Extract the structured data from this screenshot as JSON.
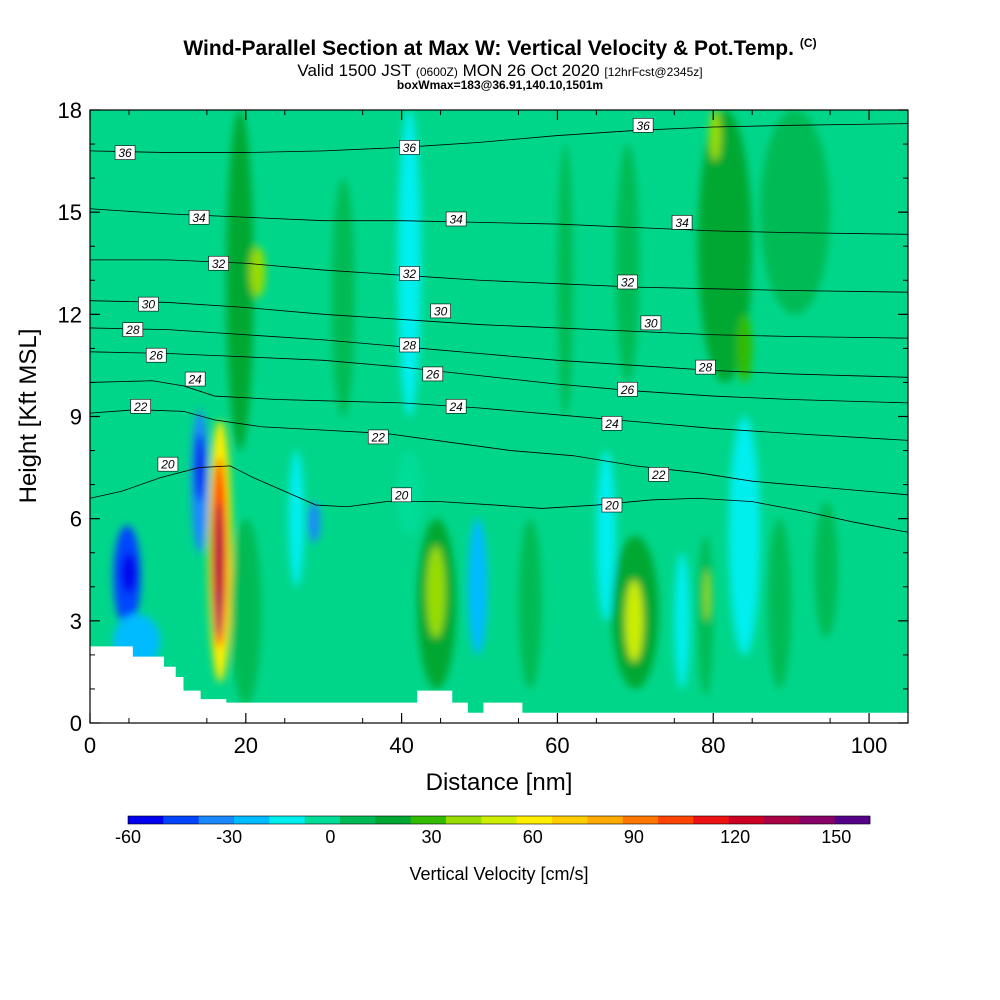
{
  "title": {
    "main": "Wind-Parallel Section at Max W: Vertical Velocity & Pot.Temp.",
    "copyright": "(C)",
    "valid_prefix": "Valid 1500 JST",
    "valid_z": "(0600Z)",
    "valid_date": "MON 26 Oct 2020",
    "fcst": "[12hrFcst@2345z]",
    "box": "boxWmax=183@36.91,140.10,1501m"
  },
  "chart_data": {
    "type": "heatmap",
    "xlabel": "Distance [nm]",
    "ylabel": "Height [Kft MSL]",
    "xlim": [
      0,
      105
    ],
    "ylim": [
      0,
      18
    ],
    "x_ticks": [
      0,
      20,
      40,
      60,
      80,
      100
    ],
    "y_ticks": [
      0,
      3,
      6,
      9,
      12,
      15,
      18
    ],
    "grid": false,
    "colorbar": {
      "label": "Vertical Velocity [cm/s]",
      "ticks": [
        -60,
        -30,
        0,
        30,
        60,
        90,
        120,
        150
      ],
      "range": [
        -60,
        160
      ],
      "colors": [
        "#0000ee",
        "#0044ff",
        "#1a88ff",
        "#00bbff",
        "#00eeee",
        "#00dd99",
        "#00bb55",
        "#00a833",
        "#33bb00",
        "#99dd00",
        "#ccee00",
        "#ffee00",
        "#ffcc00",
        "#ffaa00",
        "#ff7700",
        "#ff4400",
        "#ee1111",
        "#cc0022",
        "#aa0044",
        "#880066",
        "#550088"
      ]
    },
    "background_w_color": "#00d68a",
    "w_cells": [
      {
        "x": [
          3,
          6.5
        ],
        "y": [
          2.8,
          5.8
        ],
        "w": -45
      },
      {
        "x": [
          4,
          6
        ],
        "y": [
          3.8,
          5
        ],
        "w": -60
      },
      {
        "x": [
          3,
          9
        ],
        "y": [
          1.6,
          3.2
        ],
        "w": -20
      },
      {
        "x": [
          13,
          15.2
        ],
        "y": [
          5,
          9.2
        ],
        "w": -35
      },
      {
        "x": [
          13.5,
          14.7
        ],
        "y": [
          6.5,
          8.5
        ],
        "w": -55
      },
      {
        "x": [
          15.2,
          18.2
        ],
        "y": [
          1.2,
          8.9
        ],
        "w": 60
      },
      {
        "x": [
          15.6,
          17.6
        ],
        "y": [
          2.2,
          7.8
        ],
        "w": 100
      },
      {
        "x": [
          15.9,
          17.1
        ],
        "y": [
          3,
          6.5
        ],
        "w": 130
      },
      {
        "x": [
          16.1,
          16.8
        ],
        "y": [
          2.5,
          4
        ],
        "w": 145
      },
      {
        "x": [
          18,
          22
        ],
        "y": [
          0.5,
          6
        ],
        "w": 10
      },
      {
        "x": [
          17.5,
          21
        ],
        "y": [
          8,
          18
        ],
        "w": 15
      },
      {
        "x": [
          20.5,
          22.5
        ],
        "y": [
          12.5,
          14
        ],
        "w": 35
      },
      {
        "x": [
          25.5,
          27.5
        ],
        "y": [
          4,
          8
        ],
        "w": -15
      },
      {
        "x": [
          28,
          29.5
        ],
        "y": [
          5.3,
          6.5
        ],
        "w": -35
      },
      {
        "x": [
          31,
          34
        ],
        "y": [
          9,
          16
        ],
        "w": 10
      },
      {
        "x": [
          39.5,
          42.5
        ],
        "y": [
          9,
          18
        ],
        "w": -15
      },
      {
        "x": [
          39.5,
          42.5
        ],
        "y": [
          5.5,
          8
        ],
        "w": -5
      },
      {
        "x": [
          42,
          47
        ],
        "y": [
          1,
          6
        ],
        "w": 15
      },
      {
        "x": [
          43.2,
          45.6
        ],
        "y": [
          2.5,
          5.2
        ],
        "w": 40
      },
      {
        "x": [
          48.5,
          51
        ],
        "y": [
          2,
          6
        ],
        "w": -22
      },
      {
        "x": [
          55,
          58
        ],
        "y": [
          1,
          6
        ],
        "w": 10
      },
      {
        "x": [
          60,
          62
        ],
        "y": [
          9,
          17
        ],
        "w": 12
      },
      {
        "x": [
          65,
          67.5
        ],
        "y": [
          3,
          8
        ],
        "w": -10
      },
      {
        "x": [
          67,
          73
        ],
        "y": [
          1,
          5.5
        ],
        "w": 15
      },
      {
        "x": [
          68.7,
          71
        ],
        "y": [
          1.8,
          4.2
        ],
        "w": 45
      },
      {
        "x": [
          67.5,
          70.5
        ],
        "y": [
          10,
          17
        ],
        "w": 12
      },
      {
        "x": [
          75,
          77
        ],
        "y": [
          1,
          5
        ],
        "w": -12
      },
      {
        "x": [
          78,
          80
        ],
        "y": [
          0.8,
          5.5
        ],
        "w": 12
      },
      {
        "x": [
          78.8,
          79.6
        ],
        "y": [
          3,
          4.5
        ],
        "w": 40
      },
      {
        "x": [
          78,
          85
        ],
        "y": [
          10,
          18
        ],
        "w": 14
      },
      {
        "x": [
          79.5,
          81
        ],
        "y": [
          16.5,
          18
        ],
        "w": 35
      },
      {
        "x": [
          83,
          85
        ],
        "y": [
          10,
          12
        ],
        "w": 30
      },
      {
        "x": [
          82,
          86
        ],
        "y": [
          2,
          9
        ],
        "w": -10
      },
      {
        "x": [
          87,
          90
        ],
        "y": [
          1,
          6
        ],
        "w": 12
      },
      {
        "x": [
          86,
          95
        ],
        "y": [
          12,
          18
        ],
        "w": 10
      },
      {
        "x": [
          93,
          96
        ],
        "y": [
          2.5,
          6.5
        ],
        "w": 8
      }
    ],
    "terrain": [
      [
        0,
        2.25
      ],
      [
        5.5,
        2.25
      ],
      [
        5.5,
        1.95
      ],
      [
        9.5,
        1.95
      ],
      [
        9.5,
        1.65
      ],
      [
        11,
        1.65
      ],
      [
        11,
        1.35
      ],
      [
        12,
        1.35
      ],
      [
        12,
        0.95
      ],
      [
        14.2,
        0.95
      ],
      [
        14.2,
        0.7
      ],
      [
        17.5,
        0.7
      ],
      [
        17.5,
        0.6
      ],
      [
        42,
        0.6
      ],
      [
        42,
        0.95
      ],
      [
        46.5,
        0.95
      ],
      [
        46.5,
        0.6
      ],
      [
        48.5,
        0.6
      ],
      [
        48.5,
        0.3
      ],
      [
        50.5,
        0.3
      ],
      [
        50.5,
        0.6
      ],
      [
        55.5,
        0.6
      ],
      [
        55.5,
        0.3
      ],
      [
        105,
        0.3
      ]
    ],
    "theta_contours": [
      {
        "value": 20,
        "points": [
          [
            0,
            6.6
          ],
          [
            4,
            6.8
          ],
          [
            9,
            7.2
          ],
          [
            14,
            7.5
          ],
          [
            18,
            7.55
          ],
          [
            21,
            7.2
          ],
          [
            25,
            6.8
          ],
          [
            29,
            6.4
          ],
          [
            33,
            6.35
          ],
          [
            38,
            6.5
          ],
          [
            45,
            6.5
          ],
          [
            52,
            6.4
          ],
          [
            58,
            6.3
          ],
          [
            65,
            6.4
          ],
          [
            72,
            6.55
          ],
          [
            78,
            6.6
          ],
          [
            85,
            6.5
          ],
          [
            92,
            6.2
          ],
          [
            98,
            5.9
          ],
          [
            105,
            5.6
          ]
        ],
        "labels": [
          [
            10,
            7.6
          ],
          [
            40,
            6.7
          ],
          [
            67,
            6.4
          ]
        ]
      },
      {
        "value": 22,
        "points": [
          [
            0,
            9.1
          ],
          [
            6,
            9.2
          ],
          [
            12,
            9.15
          ],
          [
            16,
            8.9
          ],
          [
            22,
            8.7
          ],
          [
            30,
            8.6
          ],
          [
            38,
            8.5
          ],
          [
            46,
            8.25
          ],
          [
            54,
            8.0
          ],
          [
            62,
            7.85
          ],
          [
            70,
            7.55
          ],
          [
            78,
            7.35
          ],
          [
            85,
            7.1
          ],
          [
            95,
            6.9
          ],
          [
            105,
            6.7
          ]
        ],
        "labels": [
          [
            6.5,
            9.3
          ],
          [
            37,
            8.4
          ],
          [
            73,
            7.3
          ]
        ]
      },
      {
        "value": 24,
        "points": [
          [
            0,
            10.0
          ],
          [
            8,
            10.05
          ],
          [
            12,
            9.9
          ],
          [
            16,
            9.6
          ],
          [
            24,
            9.5
          ],
          [
            32,
            9.45
          ],
          [
            40,
            9.4
          ],
          [
            50,
            9.25
          ],
          [
            60,
            9.05
          ],
          [
            70,
            8.85
          ],
          [
            80,
            8.65
          ],
          [
            90,
            8.5
          ],
          [
            105,
            8.3
          ]
        ],
        "labels": [
          [
            13.5,
            10.1
          ],
          [
            47,
            9.3
          ],
          [
            67,
            8.8
          ]
        ]
      },
      {
        "value": 26,
        "points": [
          [
            0,
            10.9
          ],
          [
            10,
            10.85
          ],
          [
            20,
            10.75
          ],
          [
            30,
            10.65
          ],
          [
            40,
            10.45
          ],
          [
            50,
            10.2
          ],
          [
            60,
            9.95
          ],
          [
            70,
            9.75
          ],
          [
            80,
            9.6
          ],
          [
            90,
            9.5
          ],
          [
            105,
            9.4
          ]
        ],
        "labels": [
          [
            8.5,
            10.8
          ],
          [
            44,
            10.25
          ],
          [
            69,
            9.8
          ]
        ]
      },
      {
        "value": 28,
        "points": [
          [
            0,
            11.6
          ],
          [
            10,
            11.55
          ],
          [
            20,
            11.4
          ],
          [
            30,
            11.25
          ],
          [
            40,
            11.05
          ],
          [
            50,
            10.85
          ],
          [
            60,
            10.65
          ],
          [
            70,
            10.5
          ],
          [
            80,
            10.35
          ],
          [
            90,
            10.25
          ],
          [
            105,
            10.15
          ]
        ],
        "labels": [
          [
            5.5,
            11.55
          ],
          [
            41,
            11.1
          ],
          [
            79,
            10.45
          ]
        ]
      },
      {
        "value": 30,
        "points": [
          [
            0,
            12.4
          ],
          [
            10,
            12.35
          ],
          [
            20,
            12.2
          ],
          [
            30,
            12.0
          ],
          [
            40,
            11.85
          ],
          [
            50,
            11.7
          ],
          [
            60,
            11.6
          ],
          [
            70,
            11.5
          ],
          [
            80,
            11.4
          ],
          [
            90,
            11.35
          ],
          [
            105,
            11.3
          ]
        ],
        "labels": [
          [
            7.5,
            12.3
          ],
          [
            45,
            12.1
          ],
          [
            72,
            11.75
          ]
        ]
      },
      {
        "value": 32,
        "points": [
          [
            0,
            13.6
          ],
          [
            10,
            13.6
          ],
          [
            20,
            13.5
          ],
          [
            30,
            13.3
          ],
          [
            40,
            13.15
          ],
          [
            50,
            13.0
          ],
          [
            60,
            12.9
          ],
          [
            70,
            12.8
          ],
          [
            80,
            12.75
          ],
          [
            90,
            12.7
          ],
          [
            105,
            12.65
          ]
        ],
        "labels": [
          [
            16.5,
            13.5
          ],
          [
            41,
            13.2
          ],
          [
            69,
            12.95
          ]
        ]
      },
      {
        "value": 34,
        "points": [
          [
            0,
            15.1
          ],
          [
            10,
            14.95
          ],
          [
            20,
            14.85
          ],
          [
            30,
            14.75
          ],
          [
            40,
            14.75
          ],
          [
            50,
            14.7
          ],
          [
            60,
            14.65
          ],
          [
            70,
            14.55
          ],
          [
            80,
            14.45
          ],
          [
            90,
            14.4
          ],
          [
            105,
            14.35
          ]
        ],
        "labels": [
          [
            14,
            14.85
          ],
          [
            47,
            14.8
          ],
          [
            76,
            14.7
          ]
        ]
      },
      {
        "value": 36,
        "points": [
          [
            0,
            16.8
          ],
          [
            10,
            16.75
          ],
          [
            20,
            16.75
          ],
          [
            30,
            16.8
          ],
          [
            40,
            16.9
          ],
          [
            50,
            17.05
          ],
          [
            60,
            17.25
          ],
          [
            70,
            17.4
          ],
          [
            80,
            17.5
          ],
          [
            90,
            17.55
          ],
          [
            105,
            17.6
          ]
        ],
        "labels": [
          [
            4.5,
            16.75
          ],
          [
            41,
            16.9
          ],
          [
            71,
            17.55
          ]
        ]
      }
    ]
  }
}
